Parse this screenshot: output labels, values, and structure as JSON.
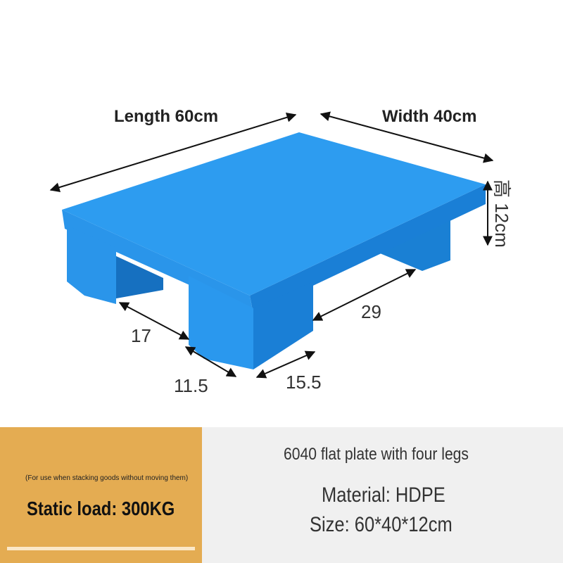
{
  "dimensions": {
    "length": "Length 60cm",
    "width": "Width 40cm",
    "height": "高 12cm",
    "leg_gap_left": "17",
    "leg_gap_right": "29",
    "leg_width_front": "11.5",
    "leg_width_side": "15.5"
  },
  "info": {
    "note": "(For use when stacking goods without moving them)",
    "static_load": "Static load: 300KG",
    "model": "6040 flat plate with four legs",
    "material": "Material: HDPE",
    "size": "Size: 60*40*12cm"
  },
  "colors": {
    "pallet": "#1e90e6",
    "left_panel": "#e4ac52",
    "right_panel": "#f0f0f0"
  }
}
